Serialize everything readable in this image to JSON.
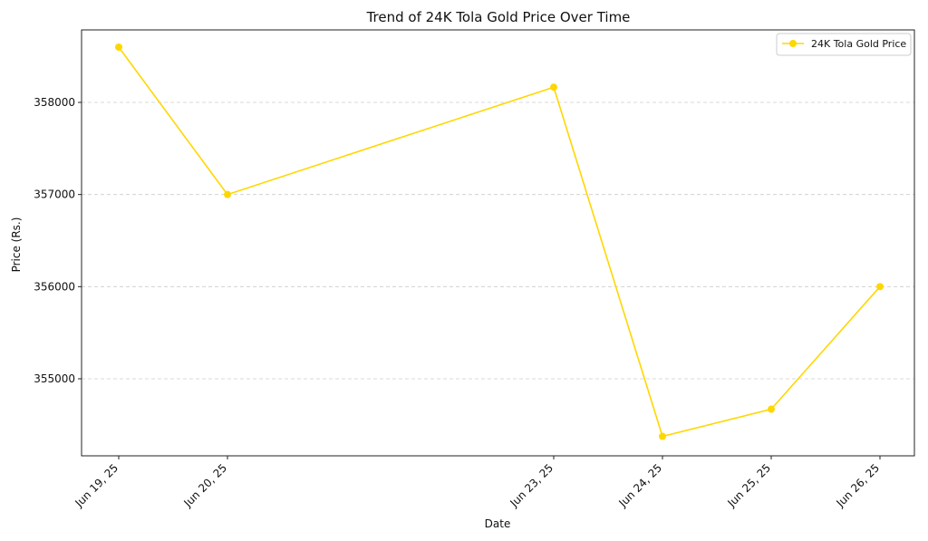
{
  "chart_data": {
    "type": "line",
    "title": "Trend of 24K Tola Gold Price Over Time",
    "xlabel": "Date",
    "ylabel": "Price (Rs.)",
    "x": [
      "2025-06-19",
      "2025-06-20",
      "2025-06-23",
      "2025-06-24",
      "2025-06-25",
      "2025-06-26"
    ],
    "x_tick_labels": [
      "Jun 19, 25",
      "Jun 20, 25",
      "Jun 23, 25",
      "Jun 24, 25",
      "Jun 25, 25",
      "Jun 26, 25"
    ],
    "series": [
      {
        "name": "24K Tola Gold Price",
        "values": [
          358600,
          357000,
          358165,
          354375,
          354670,
          356000
        ],
        "color": "#FFD700",
        "marker": "circle"
      }
    ],
    "yticks": [
      355000,
      356000,
      357000,
      358000
    ],
    "ylim": [
      354200,
      358800
    ],
    "grid": "y-dashed",
    "legend": "top-right"
  }
}
